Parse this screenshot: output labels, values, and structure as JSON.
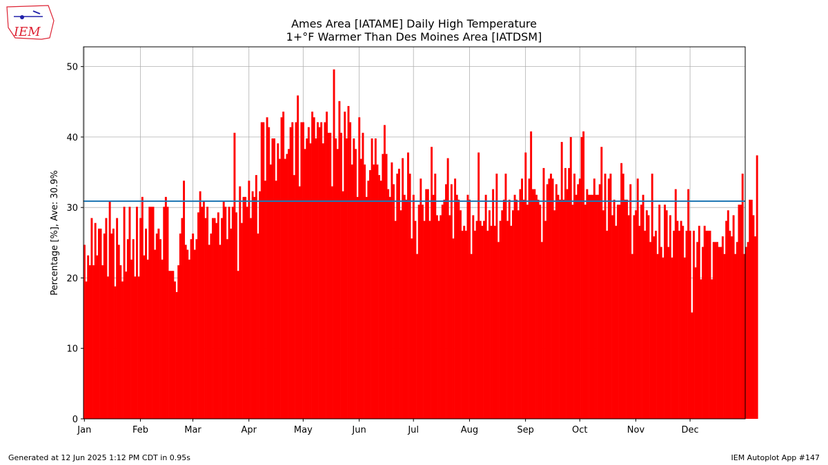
{
  "logo": {
    "text": "IEM",
    "name": "iem-logo"
  },
  "chart_data": {
    "type": "bar",
    "title": "Ames Area [IATAME] Daily High Temperature",
    "subtitle": "1+°F Warmer Than Des Moines Area [IATDSM]",
    "xlabel": "",
    "ylabel": "Percentage [%], Ave: 30.9%",
    "ylim": [
      0,
      52.8
    ],
    "xlim": [
      0.5,
      366.5
    ],
    "yticks": [
      0,
      10,
      20,
      30,
      40,
      50
    ],
    "xticks": [
      {
        "label": "Jan",
        "day": 1
      },
      {
        "label": "Feb",
        "day": 32
      },
      {
        "label": "Mar",
        "day": 61
      },
      {
        "label": "Apr",
        "day": 92
      },
      {
        "label": "May",
        "day": 122
      },
      {
        "label": "Jun",
        "day": 153
      },
      {
        "label": "Jul",
        "day": 183
      },
      {
        "label": "Aug",
        "day": 214
      },
      {
        "label": "Sep",
        "day": 245
      },
      {
        "label": "Oct",
        "day": 275
      },
      {
        "label": "Nov",
        "day": 306
      },
      {
        "label": "Dec",
        "day": 336
      }
    ],
    "grid": true,
    "bar_color": "#ff0000",
    "average": 30.9,
    "average_color": "#1f77b4",
    "values": [
      24.7,
      19.5,
      23.2,
      21.8,
      28.5,
      21.8,
      27.8,
      23.2,
      27.0,
      27.0,
      21.8,
      26.3,
      28.5,
      20.2,
      30.8,
      26.3,
      27.0,
      18.8,
      28.5,
      24.7,
      21.8,
      19.5,
      30.1,
      20.9,
      25.5,
      30.1,
      22.6,
      25.5,
      20.2,
      30.1,
      20.2,
      28.5,
      31.5,
      23.2,
      27.0,
      22.6,
      30.1,
      30.1,
      30.1,
      24.0,
      26.3,
      27.0,
      25.5,
      22.6,
      30.1,
      31.5,
      30.1,
      21.0,
      21.0,
      21.0,
      19.5,
      18.0,
      21.8,
      26.3,
      28.5,
      33.8,
      24.7,
      24.0,
      22.6,
      25.5,
      26.3,
      24.0,
      25.5,
      29.3,
      32.3,
      30.1,
      30.8,
      28.5,
      30.1,
      24.7,
      26.3,
      28.5,
      28.5,
      27.8,
      29.3,
      24.7,
      28.5,
      30.8,
      30.1,
      25.5,
      30.1,
      27.0,
      30.1,
      40.6,
      29.3,
      21.0,
      33.0,
      27.8,
      31.5,
      31.5,
      30.1,
      33.8,
      28.5,
      32.3,
      31.5,
      34.6,
      26.3,
      32.3,
      42.1,
      42.1,
      33.8,
      42.8,
      41.4,
      36.1,
      39.8,
      39.8,
      33.8,
      39.1,
      36.9,
      42.8,
      43.6,
      36.9,
      37.6,
      38.3,
      41.4,
      42.1,
      34.6,
      42.1,
      45.9,
      33.0,
      42.1,
      42.1,
      38.3,
      39.8,
      41.4,
      39.1,
      43.6,
      42.8,
      39.8,
      42.1,
      41.4,
      42.1,
      39.1,
      42.1,
      43.6,
      40.6,
      40.6,
      33.0,
      49.6,
      39.8,
      38.3,
      45.1,
      40.6,
      32.3,
      43.6,
      39.8,
      44.4,
      42.1,
      36.1,
      39.8,
      38.3,
      31.5,
      42.8,
      36.9,
      40.6,
      36.1,
      31.5,
      33.8,
      35.3,
      39.8,
      36.1,
      39.8,
      36.1,
      34.6,
      33.8,
      37.6,
      41.7,
      37.6,
      32.6,
      31.5,
      36.4,
      33.3,
      28.1,
      34.8,
      35.5,
      29.6,
      37.0,
      31.8,
      31.1,
      37.8,
      34.8,
      25.6,
      31.8,
      28.1,
      23.4,
      30.4,
      34.1,
      30.4,
      28.1,
      32.6,
      32.6,
      28.1,
      38.6,
      31.8,
      34.8,
      28.9,
      28.1,
      28.9,
      30.4,
      31.1,
      33.3,
      37.0,
      28.9,
      33.3,
      25.6,
      34.1,
      31.8,
      31.1,
      29.6,
      26.7,
      27.4,
      26.7,
      31.8,
      31.1,
      23.4,
      28.9,
      26.7,
      28.1,
      37.8,
      28.1,
      27.4,
      28.1,
      31.8,
      26.7,
      29.6,
      27.4,
      32.6,
      27.4,
      34.8,
      25.1,
      28.1,
      29.6,
      31.1,
      34.8,
      28.1,
      31.1,
      27.4,
      29.6,
      31.8,
      31.1,
      29.6,
      32.6,
      34.1,
      31.1,
      37.8,
      30.4,
      34.1,
      40.8,
      32.6,
      32.6,
      31.8,
      31.1,
      30.4,
      25.1,
      35.6,
      28.1,
      33.3,
      34.1,
      34.8,
      34.1,
      29.6,
      33.3,
      31.8,
      31.1,
      39.3,
      31.1,
      35.6,
      32.6,
      35.6,
      40.0,
      30.4,
      34.8,
      31.8,
      33.3,
      34.1,
      40.0,
      40.8,
      30.4,
      32.6,
      31.8,
      31.8,
      31.8,
      34.1,
      31.8,
      31.8,
      33.3,
      38.6,
      29.6,
      34.8,
      26.7,
      34.1,
      34.8,
      28.9,
      31.1,
      27.4,
      30.4,
      30.4,
      36.3,
      34.8,
      31.1,
      31.1,
      28.9,
      33.3,
      23.4,
      28.9,
      29.6,
      34.1,
      27.4,
      30.4,
      31.8,
      26.7,
      29.6,
      28.9,
      25.1,
      34.8,
      25.9,
      26.7,
      23.4,
      30.4,
      24.4,
      22.9,
      30.4,
      29.6,
      24.4,
      28.9,
      22.9,
      26.7,
      32.6,
      28.1,
      26.7,
      28.1,
      27.4,
      22.9,
      26.7,
      32.6,
      26.7,
      15.1,
      26.7,
      21.5,
      25.1,
      27.4,
      19.8,
      24.4,
      27.4,
      26.7,
      26.7,
      26.7,
      19.8,
      25.1,
      25.1,
      25.1,
      24.4,
      24.4,
      25.9,
      23.4,
      28.1,
      29.6,
      26.7,
      25.9,
      28.9,
      23.4,
      25.1,
      30.4,
      30.4,
      34.8,
      23.4,
      24.4,
      25.1,
      31.1,
      31.1,
      28.9,
      25.9,
      37.4
    ]
  },
  "footer": {
    "left": "Generated at 12 Jun 2025 1:12 PM CDT in 0.95s",
    "right": "IEM Autoplot App #147"
  }
}
